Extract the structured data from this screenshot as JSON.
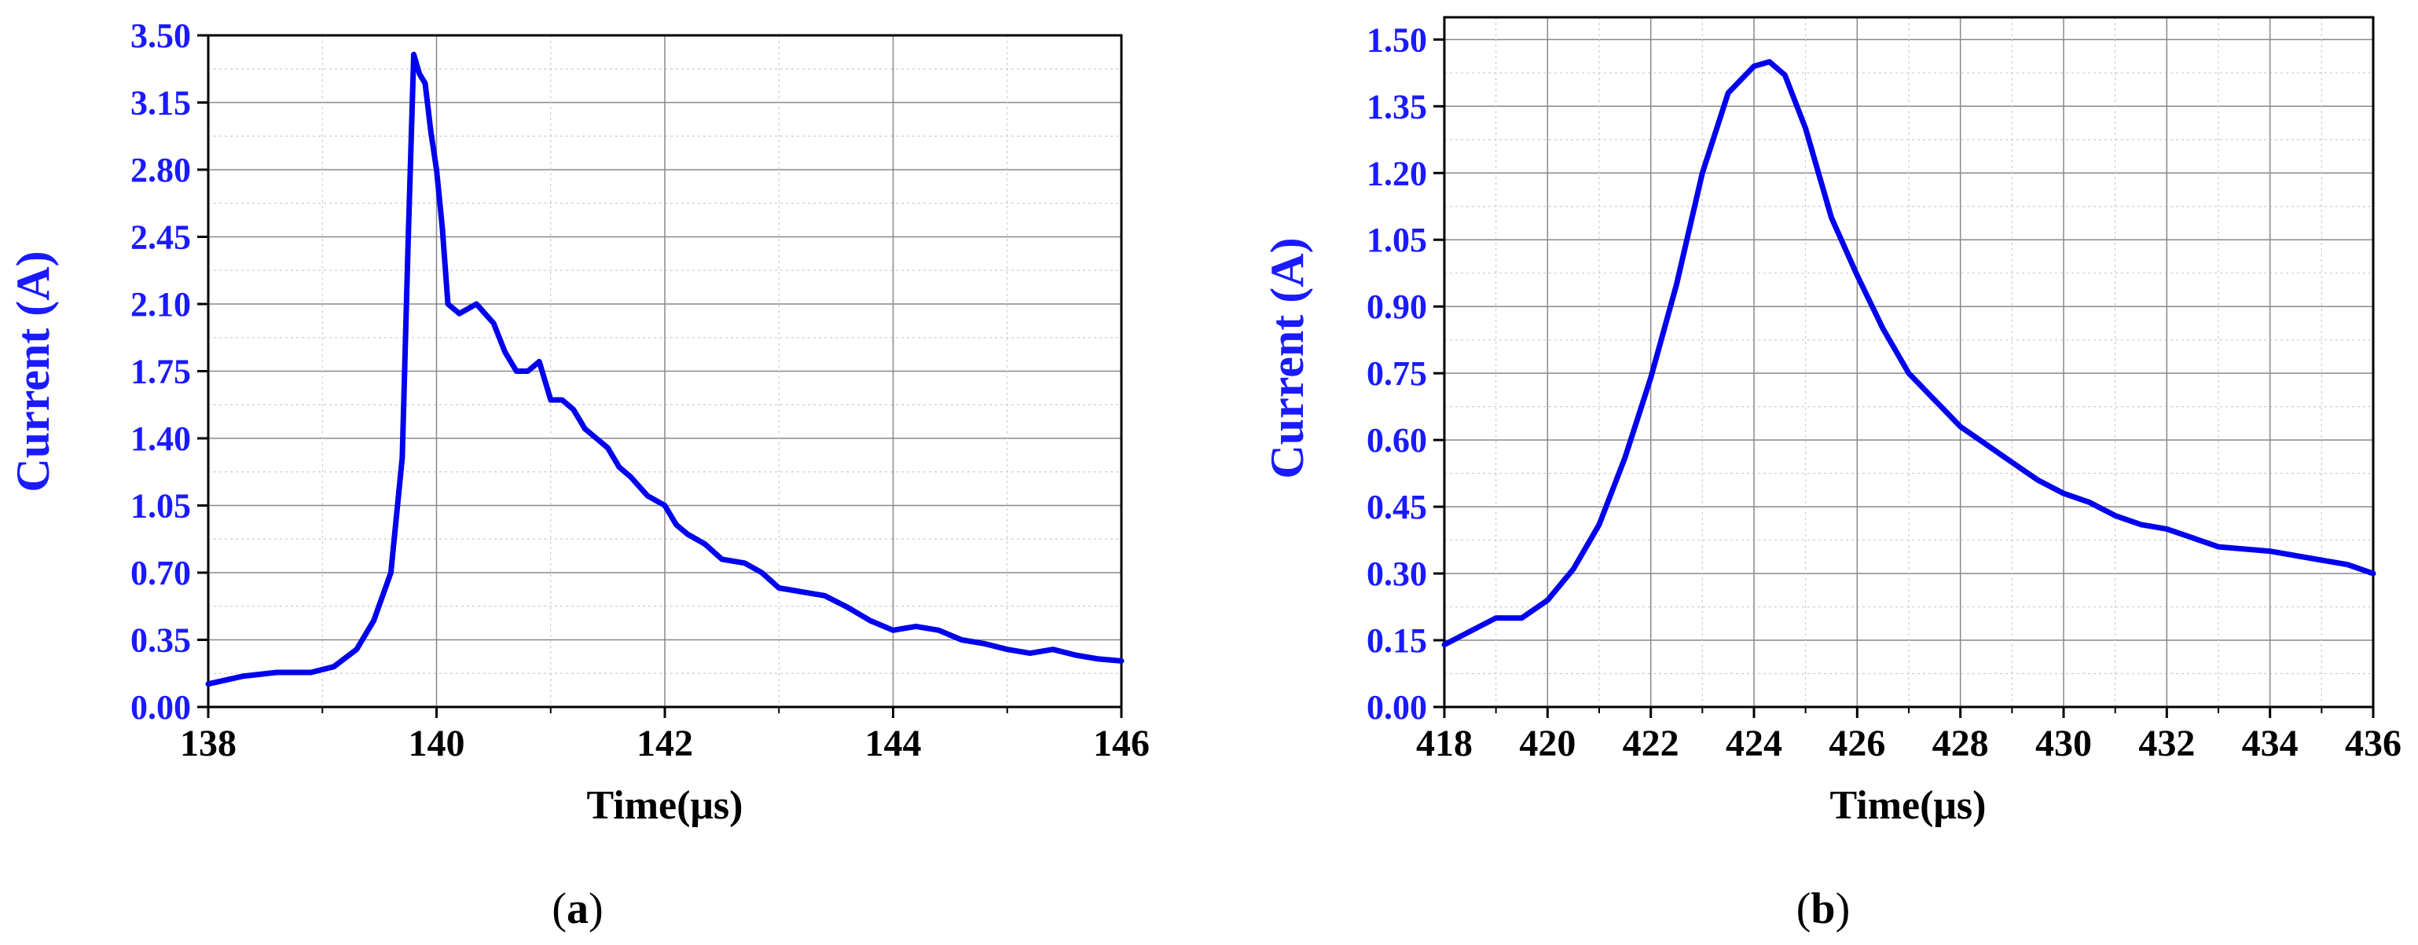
{
  "colors": {
    "series": "#0000ee",
    "tick_y": "#1a1aff",
    "grid_dark": "#888888",
    "grid_light": "#cccccc"
  },
  "chart_data": [
    {
      "id": "a",
      "type": "line",
      "caption": "a",
      "xlabel": "Time(μs)",
      "ylabel": "Current (A)",
      "xlim": [
        138,
        146
      ],
      "ylim": [
        0,
        3.5
      ],
      "xticks": [
        "138",
        "140",
        "142",
        "144",
        "146"
      ],
      "yticks": [
        "0.00",
        "0.35",
        "0.70",
        "1.05",
        "1.40",
        "1.75",
        "2.10",
        "2.45",
        "2.80",
        "3.15",
        "3.50"
      ],
      "grid": true,
      "series": [
        {
          "x": [
            138.0,
            138.3,
            138.6,
            138.9,
            139.1,
            139.3,
            139.45,
            139.6,
            139.7,
            139.75,
            139.8,
            139.85,
            139.9,
            139.95,
            140.0,
            140.05,
            140.1,
            140.2,
            140.35,
            140.5,
            140.6,
            140.7,
            140.8,
            140.9,
            141.0,
            141.1,
            141.2,
            141.3,
            141.4,
            141.5,
            141.6,
            141.7,
            141.85,
            142.0,
            142.1,
            142.2,
            142.35,
            142.5,
            142.7,
            142.85,
            143.0,
            143.2,
            143.4,
            143.6,
            143.8,
            144.0,
            144.2,
            144.4,
            144.6,
            144.8,
            145.0,
            145.2,
            145.4,
            145.6,
            145.8,
            146.0
          ],
          "y": [
            0.12,
            0.16,
            0.18,
            0.18,
            0.21,
            0.3,
            0.45,
            0.7,
            1.3,
            2.4,
            3.4,
            3.3,
            3.25,
            3.0,
            2.8,
            2.5,
            2.1,
            2.05,
            2.1,
            2.0,
            1.85,
            1.75,
            1.75,
            1.8,
            1.6,
            1.6,
            1.55,
            1.45,
            1.4,
            1.35,
            1.25,
            1.2,
            1.1,
            1.05,
            0.95,
            0.9,
            0.85,
            0.77,
            0.75,
            0.7,
            0.62,
            0.6,
            0.58,
            0.52,
            0.45,
            0.4,
            0.42,
            0.4,
            0.35,
            0.33,
            0.3,
            0.28,
            0.3,
            0.27,
            0.25,
            0.24
          ]
        }
      ]
    },
    {
      "id": "b",
      "type": "line",
      "caption": "b",
      "xlabel": "Time(μs)",
      "ylabel": "Current (A)",
      "xlim": [
        418,
        436
      ],
      "ylim": [
        0,
        1.55
      ],
      "xticks": [
        "418",
        "420",
        "422",
        "424",
        "426",
        "428",
        "430",
        "432",
        "434",
        "436"
      ],
      "yticks": [
        "0.00",
        "0.15",
        "0.30",
        "0.45",
        "0.60",
        "0.75",
        "0.90",
        "1.05",
        "1.20",
        "1.35",
        "1.50"
      ],
      "grid": true,
      "series": [
        {
          "x": [
            418.0,
            418.5,
            419.0,
            419.5,
            420.0,
            420.5,
            421.0,
            421.5,
            422.0,
            422.5,
            423.0,
            423.5,
            424.0,
            424.3,
            424.6,
            425.0,
            425.5,
            426.0,
            426.5,
            427.0,
            427.5,
            428.0,
            428.5,
            429.0,
            429.5,
            430.0,
            430.5,
            431.0,
            431.5,
            432.0,
            432.5,
            433.0,
            434.0,
            435.0,
            435.5,
            436.0
          ],
          "y": [
            0.14,
            0.17,
            0.2,
            0.2,
            0.24,
            0.31,
            0.41,
            0.56,
            0.74,
            0.95,
            1.2,
            1.38,
            1.44,
            1.45,
            1.42,
            1.3,
            1.1,
            0.97,
            0.85,
            0.75,
            0.69,
            0.63,
            0.59,
            0.55,
            0.51,
            0.48,
            0.46,
            0.43,
            0.41,
            0.4,
            0.38,
            0.36,
            0.35,
            0.33,
            0.32,
            0.3
          ]
        }
      ]
    }
  ]
}
